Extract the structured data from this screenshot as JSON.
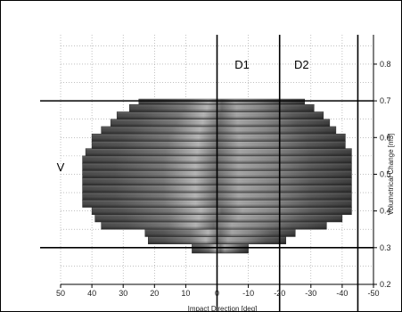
{
  "chart_data": {
    "type": "heatmap",
    "x": {
      "label": "Impact Direction [deg]",
      "ticks": [
        50,
        40,
        30,
        20,
        10,
        0,
        -10,
        -20,
        -30,
        -40,
        -50
      ],
      "range": [
        50,
        -50
      ],
      "reversed": true
    },
    "y": {
      "label": "Volumetrical Change [m3]",
      "ticks": [
        0.2,
        0.3,
        0.4,
        0.5,
        0.6,
        0.7,
        0.8
      ],
      "range": [
        0.2,
        0.88
      ],
      "position": "right"
    },
    "grid": true,
    "annotations": [
      {
        "text": "D1",
        "x": -8,
        "y": 0.8
      },
      {
        "text": "D2",
        "x": -27,
        "y": 0.8
      },
      {
        "text": "V",
        "x": 50,
        "y": 0.52
      }
    ],
    "reference_lines": {
      "vertical": [
        0,
        -20,
        -45
      ],
      "horizontal": [
        0.7,
        0.3
      ]
    },
    "bands": [
      {
        "y_low": 0.285,
        "y_high": 0.31,
        "x_left": 8,
        "x_right": -10
      },
      {
        "y_low": 0.31,
        "y_high": 0.33,
        "x_left": 22,
        "x_right": -22
      },
      {
        "y_low": 0.33,
        "y_high": 0.35,
        "x_left": 23,
        "x_right": -25
      },
      {
        "y_low": 0.35,
        "y_high": 0.37,
        "x_left": 37,
        "x_right": -35
      },
      {
        "y_low": 0.37,
        "y_high": 0.39,
        "x_left": 39,
        "x_right": -40
      },
      {
        "y_low": 0.39,
        "y_high": 0.41,
        "x_left": 40,
        "x_right": -43
      },
      {
        "y_low": 0.41,
        "y_high": 0.43,
        "x_left": 43,
        "x_right": -43
      },
      {
        "y_low": 0.43,
        "y_high": 0.45,
        "x_left": 43,
        "x_right": -43
      },
      {
        "y_low": 0.45,
        "y_high": 0.47,
        "x_left": 43,
        "x_right": -43
      },
      {
        "y_low": 0.47,
        "y_high": 0.49,
        "x_left": 43,
        "x_right": -43
      },
      {
        "y_low": 0.49,
        "y_high": 0.51,
        "x_left": 43,
        "x_right": -43
      },
      {
        "y_low": 0.51,
        "y_high": 0.53,
        "x_left": 43,
        "x_right": -43
      },
      {
        "y_low": 0.53,
        "y_high": 0.55,
        "x_left": 43,
        "x_right": -43
      },
      {
        "y_low": 0.55,
        "y_high": 0.57,
        "x_left": 42,
        "x_right": -43
      },
      {
        "y_low": 0.57,
        "y_high": 0.59,
        "x_left": 40,
        "x_right": -41
      },
      {
        "y_low": 0.59,
        "y_high": 0.61,
        "x_left": 40,
        "x_right": -41
      },
      {
        "y_low": 0.61,
        "y_high": 0.63,
        "x_left": 37,
        "x_right": -38
      },
      {
        "y_low": 0.63,
        "y_high": 0.65,
        "x_left": 34,
        "x_right": -36
      },
      {
        "y_low": 0.65,
        "y_high": 0.67,
        "x_left": 32,
        "x_right": -34
      },
      {
        "y_low": 0.67,
        "y_high": 0.69,
        "x_left": 28,
        "x_right": -31
      },
      {
        "y_low": 0.69,
        "y_high": 0.705,
        "x_left": 25,
        "x_right": -28
      }
    ]
  }
}
